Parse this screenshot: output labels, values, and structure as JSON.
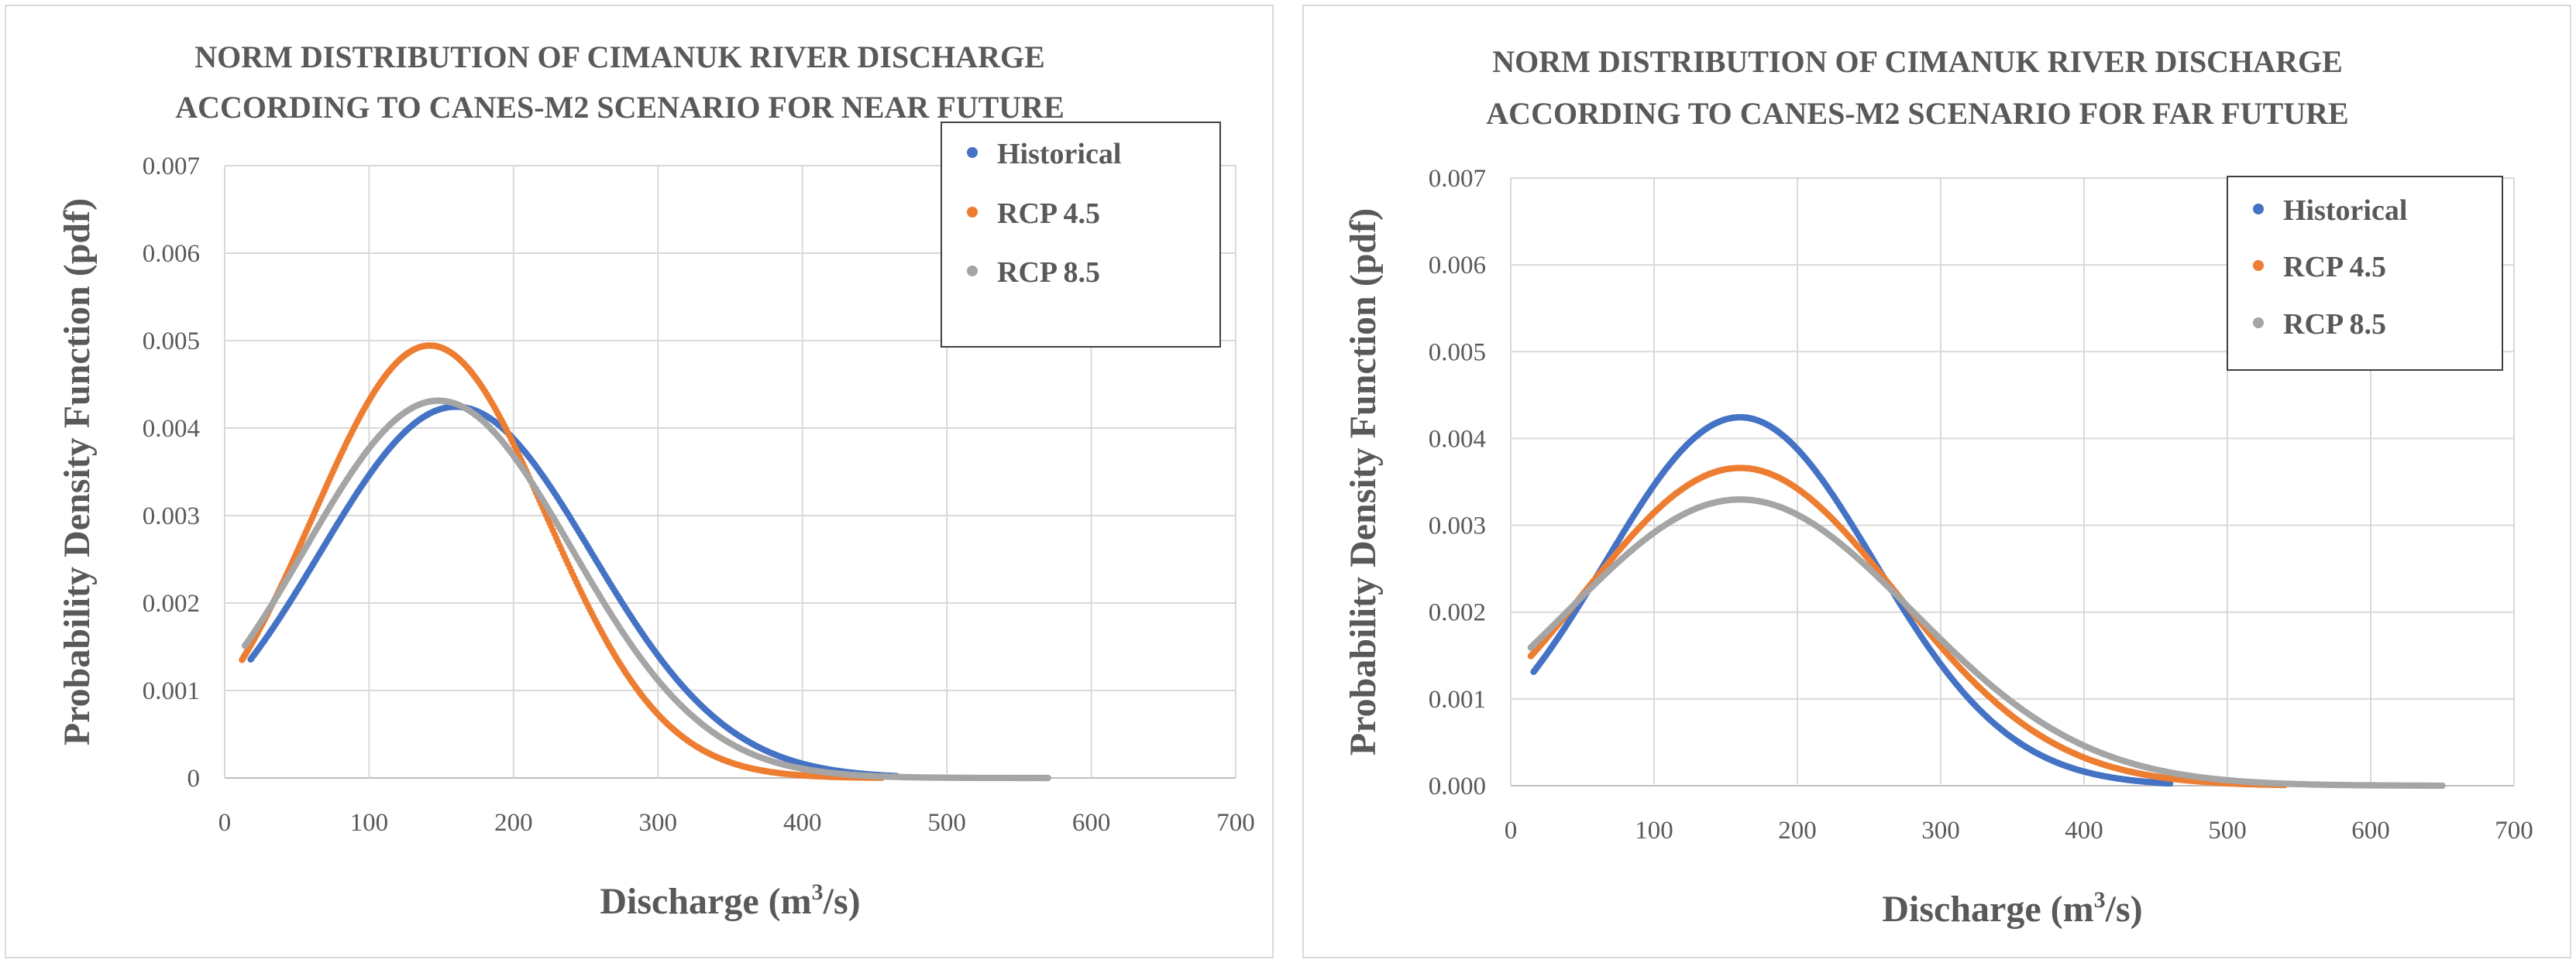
{
  "chart_data": [
    {
      "type": "scatter",
      "title_lines": [
        "NORM DISTRIBUTION OF CIMANUK RIVER DISCHARGE",
        "ACCORDING TO CANES-M2 SCENARIO FOR NEAR FUTURE"
      ],
      "xlabel_main": "Discharge (m",
      "xlabel_sup": "3",
      "xlabel_tail": "/s)",
      "ylabel": "Probability Density Function (pdf)",
      "xlim": [
        0,
        700
      ],
      "ylim": [
        0,
        0.007
      ],
      "xticks": [
        "0",
        "100",
        "200",
        "300",
        "400",
        "500",
        "600",
        "700"
      ],
      "yticks": [
        "0",
        "0.001",
        "0.002",
        "0.003",
        "0.004",
        "0.005",
        "0.006",
        "0.007"
      ],
      "grid": true,
      "legend_position": "top-right",
      "series": [
        {
          "name": "Historical",
          "color": "#4472C4",
          "mean": 160,
          "sd": 94,
          "xmin": 18,
          "xmax": 465
        },
        {
          "name": "RCP 4.5",
          "color": "#ED7D31",
          "mean": 142,
          "sd": 80.7,
          "xmin": 12,
          "xmax": 455
        },
        {
          "name": "RCP 8.5",
          "color": "#A5A5A5",
          "mean": 148,
          "sd": 92.5,
          "xmin": 14,
          "xmax": 570
        }
      ]
    },
    {
      "type": "scatter",
      "title_lines": [
        "NORM DISTRIBUTION OF CIMANUK RIVER DISCHARGE",
        "ACCORDING TO CANES-M2 SCENARIO FOR FAR FUTURE"
      ],
      "xlabel_main": "Discharge (m",
      "xlabel_sup": "3",
      "xlabel_tail": "/s)",
      "ylabel": "Probability Density Function (pdf)",
      "xlim": [
        0,
        700
      ],
      "ylim": [
        0,
        0.007
      ],
      "xticks": [
        "0",
        "100",
        "200",
        "300",
        "400",
        "500",
        "600",
        "700"
      ],
      "yticks": [
        "0.000",
        "0.001",
        "0.002",
        "0.003",
        "0.004",
        "0.005",
        "0.006",
        "0.007"
      ],
      "grid": true,
      "legend_position": "top-right",
      "series": [
        {
          "name": "Historical",
          "color": "#4472C4",
          "mean": 160,
          "sd": 94,
          "xmin": 16,
          "xmax": 460
        },
        {
          "name": "RCP 4.5",
          "color": "#ED7D31",
          "mean": 160,
          "sd": 109,
          "xmin": 14,
          "xmax": 540
        },
        {
          "name": "RCP 8.5",
          "color": "#A5A5A5",
          "mean": 160,
          "sd": 121,
          "xmin": 14,
          "xmax": 650
        }
      ]
    }
  ]
}
